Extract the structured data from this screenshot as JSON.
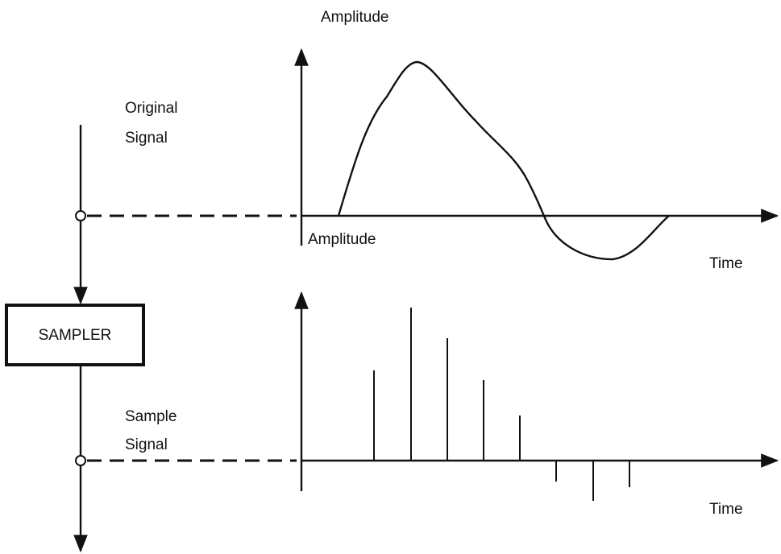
{
  "top_plot": {
    "y_label": "Amplitude",
    "x_label": "Time"
  },
  "original_signal": {
    "label_lines": [
      "Original",
      "Signal"
    ]
  },
  "sampler": {
    "label": "SAMPLER"
  },
  "bottom_plot": {
    "y_label": "Amplitude",
    "x_label": "Time"
  },
  "sample_signal": {
    "label_lines": [
      "Sample",
      "Signal"
    ]
  }
}
